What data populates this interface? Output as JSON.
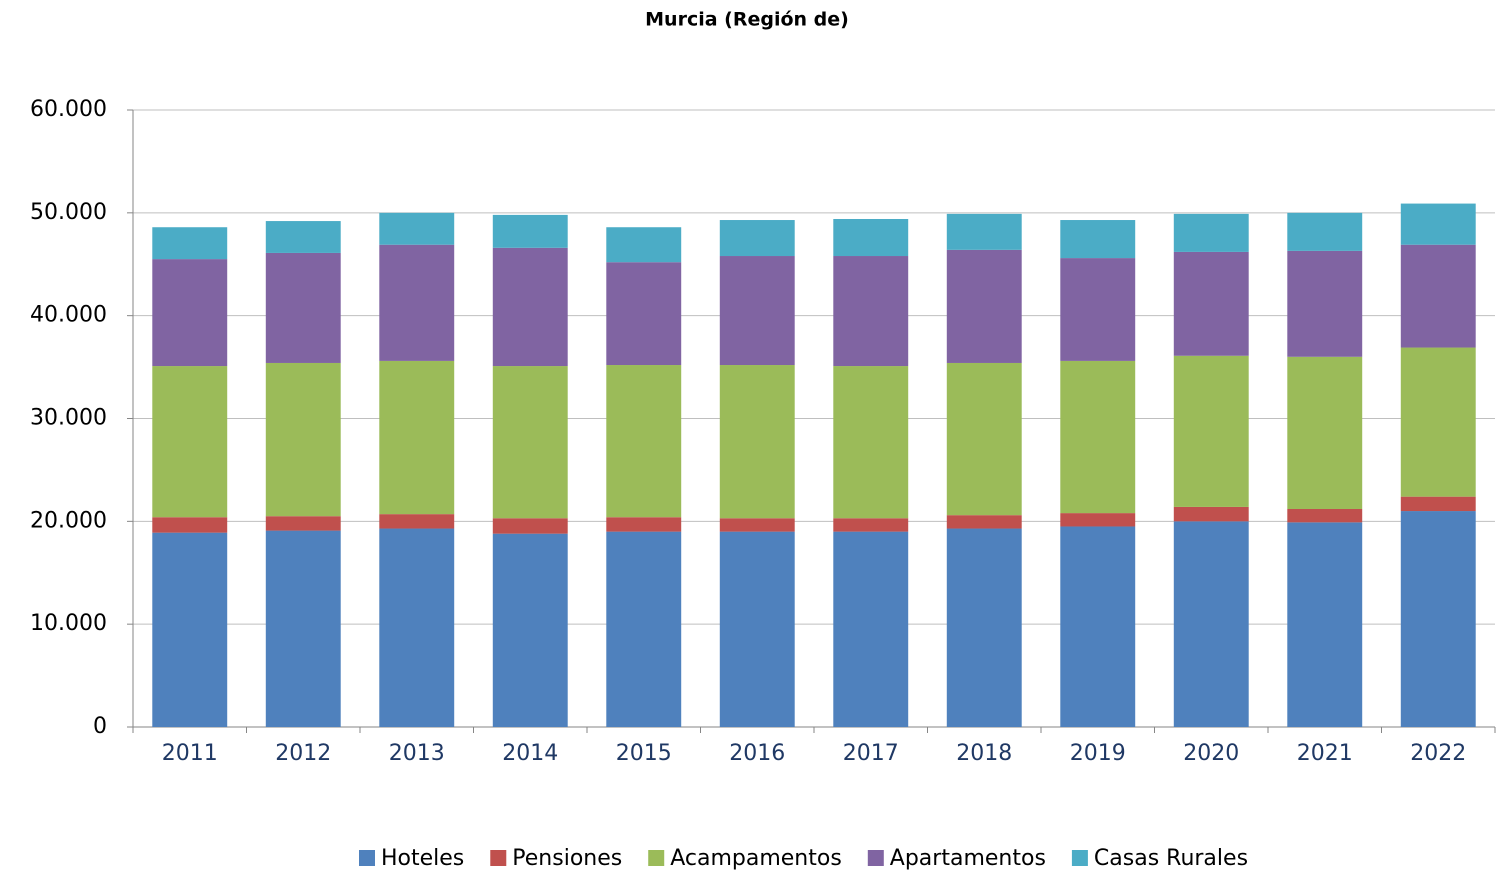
{
  "chart_data": {
    "type": "stacked_bar",
    "title": "Murcia (Región de)",
    "categories": [
      "2011",
      "2012",
      "2013",
      "2014",
      "2015",
      "2016",
      "2017",
      "2018",
      "2019",
      "2020",
      "2021",
      "2022"
    ],
    "series": [
      {
        "name": "Hoteles",
        "color": "#4f81bd",
        "values": [
          18900,
          19100,
          19300,
          18800,
          19000,
          19000,
          19000,
          19300,
          19500,
          20000,
          19900,
          21000
        ]
      },
      {
        "name": "Pensiones",
        "color": "#c0504d",
        "values": [
          1500,
          1400,
          1400,
          1500,
          1400,
          1300,
          1300,
          1300,
          1300,
          1400,
          1300,
          1400
        ]
      },
      {
        "name": "Acampamentos",
        "color": "#9bbb59",
        "values": [
          14700,
          14900,
          14900,
          14800,
          14800,
          14900,
          14800,
          14800,
          14800,
          14700,
          14800,
          14500
        ]
      },
      {
        "name": "Apartamentos",
        "color": "#8064a2",
        "values": [
          10400,
          10700,
          11300,
          11500,
          10000,
          10600,
          10700,
          11000,
          10000,
          10100,
          10300,
          10000
        ]
      },
      {
        "name": "Casas Rurales",
        "color": "#4bacc6",
        "values": [
          3100,
          3100,
          3100,
          3200,
          3400,
          3500,
          3600,
          3500,
          3700,
          3700,
          3700,
          4000
        ]
      }
    ],
    "ylim": [
      0,
      60000
    ],
    "yticks": [
      0,
      {
        "value": 10000,
        "label": "10.000"
      },
      {
        "value": 20000,
        "label": "20.000"
      },
      {
        "value": 30000,
        "label": "30.000"
      },
      {
        "value": 40000,
        "label": "40.000"
      },
      {
        "value": 50000,
        "label": "50.000"
      },
      {
        "value": 60000,
        "label": "60.000"
      }
    ],
    "grid": true,
    "legend": "bottom"
  }
}
